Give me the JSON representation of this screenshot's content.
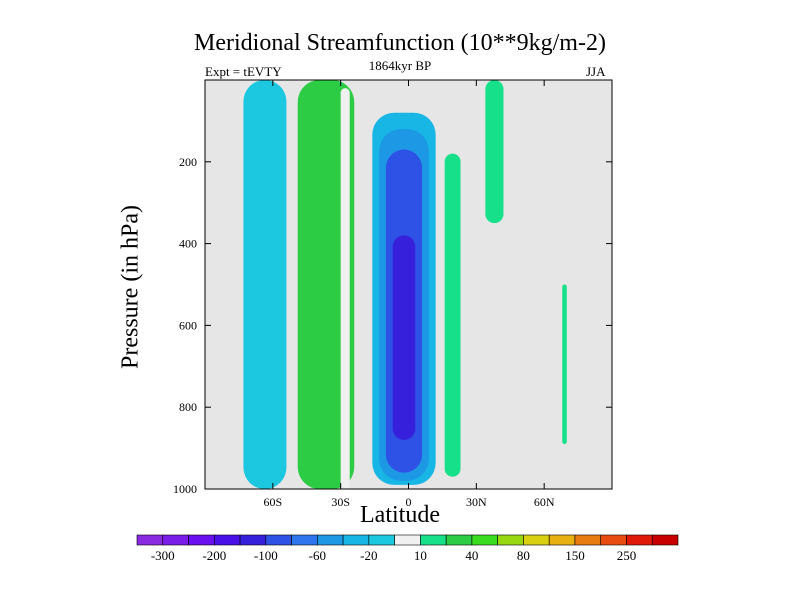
{
  "chart_data": {
    "type": "contour",
    "title": "Meridional Streamfunction (10**9kg/m-2)",
    "subtitle": "1864kyr BP",
    "left_annotation": "Expt = tEVTY",
    "right_annotation": "JJA",
    "xlabel": "Latitude",
    "ylabel": "Pressure (in hPa)",
    "xlim": [
      -90,
      90
    ],
    "ylim": [
      1000,
      0
    ],
    "x_ticks": [
      {
        "value": -60,
        "label": "60S"
      },
      {
        "value": -30,
        "label": "30S"
      },
      {
        "value": 0,
        "label": "0"
      },
      {
        "value": 30,
        "label": "30N"
      },
      {
        "value": 60,
        "label": "60N"
      }
    ],
    "y_ticks": [
      {
        "value": 200,
        "label": "200"
      },
      {
        "value": 400,
        "label": "400"
      },
      {
        "value": 600,
        "label": "600"
      },
      {
        "value": 800,
        "label": "800"
      },
      {
        "value": 1000,
        "label": "1000"
      }
    ],
    "colorbar": {
      "levels": [
        "-300",
        "-250",
        "-200",
        "-150",
        "-100",
        "-80",
        "-60",
        "-40",
        "-20",
        "-10",
        "10",
        "20",
        "40",
        "60",
        "80",
        "100",
        "150",
        "200",
        "250",
        "300"
      ],
      "colors": [
        "#8a2be2",
        "#7a1de8",
        "#6a0ff0",
        "#4a10e8",
        "#3620dc",
        "#2e52e6",
        "#2f76ee",
        "#1c98e4",
        "#18b6e4",
        "#1bc8e0",
        "#f0f0f0",
        "#16e08a",
        "#2ccc44",
        "#3adc20",
        "#98d810",
        "#d8d010",
        "#e8b010",
        "#e87c10",
        "#e84c10",
        "#e01808",
        "#c80000"
      ],
      "labels": [
        "-300",
        "-200",
        "-100",
        "-60",
        "-20",
        "10",
        "40",
        "80",
        "150",
        "250"
      ]
    },
    "regions": [
      {
        "value": -15,
        "lat": [
          -73,
          -54
        ],
        "p": [
          1000,
          0
        ]
      },
      {
        "value": 20,
        "lat": [
          -49,
          -24
        ],
        "p": [
          1000,
          0
        ]
      },
      {
        "value": -10,
        "lat": [
          -30,
          -26
        ],
        "p": [
          1000,
          20
        ]
      },
      {
        "value": -25,
        "lat": [
          -16,
          12
        ],
        "p": [
          990,
          80
        ]
      },
      {
        "value": -60,
        "lat": [
          -13,
          9
        ],
        "p": [
          980,
          120
        ]
      },
      {
        "value": -100,
        "lat": [
          -10,
          6
        ],
        "p": [
          960,
          170
        ]
      },
      {
        "value": -150,
        "lat": [
          -7,
          3
        ],
        "p": [
          880,
          380
        ]
      },
      {
        "value": 10,
        "lat": [
          16,
          23
        ],
        "p": [
          970,
          180
        ]
      },
      {
        "value": 10,
        "lat": [
          34,
          42
        ],
        "p": [
          350,
          0
        ]
      },
      {
        "value": 10,
        "lat": [
          68,
          70
        ],
        "p": [
          890,
          500
        ]
      }
    ]
  }
}
